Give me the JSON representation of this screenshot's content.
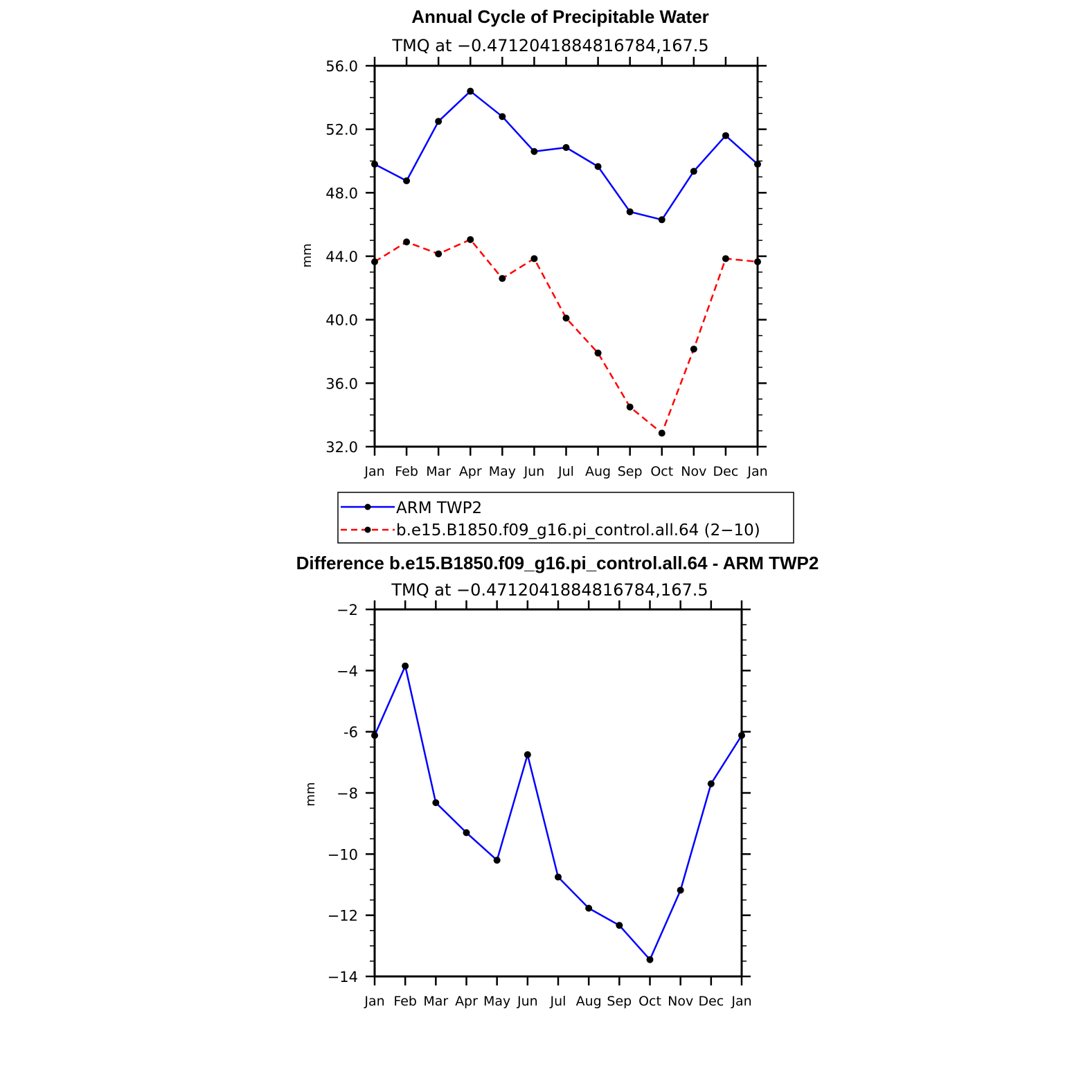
{
  "chart_data": [
    {
      "type": "line",
      "title": "Annual Cycle of Precipitable Water",
      "subtitle": "TMQ at −0.4712041884816784,167.5",
      "xlabel": "",
      "ylabel": "mm",
      "categories": [
        "Jan",
        "Feb",
        "Mar",
        "Apr",
        "May",
        "Jun",
        "Jul",
        "Aug",
        "Sep",
        "Oct",
        "Nov",
        "Dec",
        "Jan"
      ],
      "ylim": [
        32.0,
        56.0
      ],
      "y_ticks": [
        "32.0",
        "36.0",
        "40.0",
        "44.0",
        "48.0",
        "52.0",
        "56.0"
      ],
      "y_tick_values": [
        32,
        36,
        40,
        44,
        48,
        52,
        56
      ],
      "series": [
        {
          "name": "ARM TWP2",
          "color": "#0000ff",
          "style": "solid",
          "values": [
            49.8,
            48.75,
            52.5,
            54.4,
            52.8,
            50.6,
            50.85,
            49.65,
            46.8,
            46.3,
            49.35,
            51.6,
            49.8
          ]
        },
        {
          "name": "b.e15.B1850.f09_g16.pi_control.all.64 (2−10)",
          "color": "#ff0000",
          "style": "dashed",
          "values": [
            43.65,
            44.9,
            44.15,
            45.05,
            42.6,
            43.85,
            40.1,
            37.9,
            34.5,
            32.85,
            38.15,
            43.85,
            43.65
          ]
        }
      ],
      "legend": "below"
    },
    {
      "type": "line",
      "title": "Difference b.e15.B1850.f09_g16.pi_control.all.64 - ARM TWP2",
      "subtitle": "TMQ at −0.4712041884816784,167.5",
      "xlabel": "",
      "ylabel": "mm",
      "categories": [
        "Jan",
        "Feb",
        "Mar",
        "Apr",
        "May",
        "Jun",
        "Jul",
        "Aug",
        "Sep",
        "Oct",
        "Nov",
        "Dec",
        "Jan"
      ],
      "ylim": [
        -14,
        -2
      ],
      "y_ticks": [
        "−14",
        "−12",
        "−10",
        "−8",
        "-6",
        "−4",
        "−2"
      ],
      "y_tick_values": [
        -14,
        -12,
        -10,
        -8,
        -6,
        -4,
        -2
      ],
      "series": [
        {
          "name": "Difference",
          "color": "#0000ff",
          "style": "solid",
          "values": [
            -6.12,
            -3.85,
            -8.32,
            -9.3,
            -10.2,
            -6.75,
            -10.75,
            -11.77,
            -12.33,
            -13.45,
            -11.18,
            -7.7,
            -6.12
          ]
        }
      ]
    }
  ]
}
